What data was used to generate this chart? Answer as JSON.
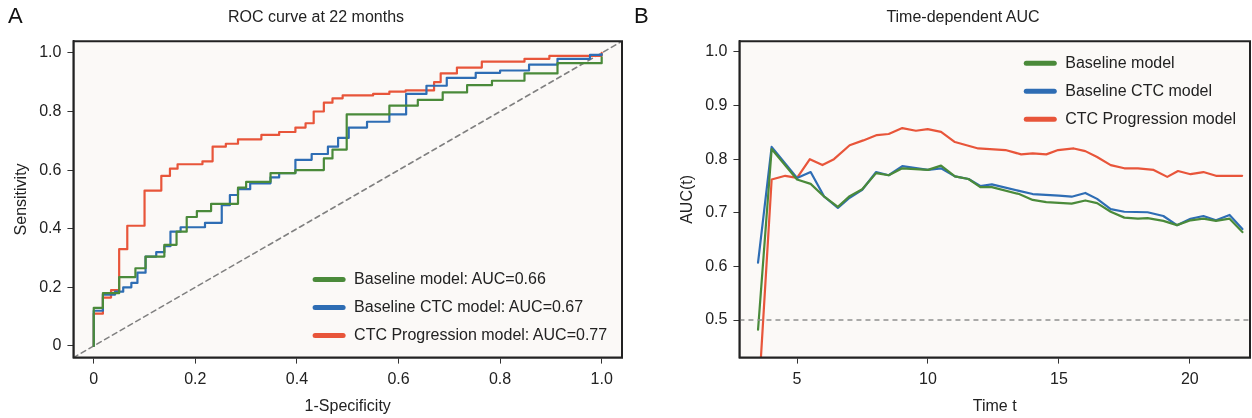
{
  "chart_data": [
    {
      "type": "step",
      "title": "ROC curve at 22 months",
      "xlabel": "1-Specificity",
      "ylabel": "Sensitivity",
      "annotations": [
        "A"
      ],
      "xlim": [
        -0.04,
        1.04
      ],
      "ylim": [
        -0.04,
        1.04
      ],
      "xticks": [
        0,
        0.2,
        0.4,
        0.6,
        0.8,
        {
          "value": 1,
          "label": "1.0"
        }
      ],
      "yticks": [
        0,
        0.2,
        0.4,
        0.6,
        0.8,
        {
          "value": 1,
          "label": "1.0"
        }
      ],
      "legend": "bottom right",
      "marker": "none",
      "series": [
        {
          "name": "Baseline model: AUC=0.66",
          "color": "#4a8a3a",
          "x": [
            0,
            0,
            0.018,
            0.05,
            0.082,
            0.102,
            0.139,
            0.163,
            0.183,
            0.203,
            0.231,
            0.284,
            0.3,
            0.348,
            0.397,
            0.453,
            0.47,
            0.498,
            0.582,
            0.638,
            0.687,
            0.735,
            0.784,
            0.848,
            0.913,
            1
          ],
          "values": [
            0,
            0.13,
            0.18,
            0.235,
            0.265,
            0.305,
            0.345,
            0.39,
            0.44,
            0.46,
            0.485,
            0.54,
            0.56,
            0.59,
            0.6,
            0.64,
            0.67,
            0.79,
            0.82,
            0.84,
            0.865,
            0.89,
            0.905,
            0.93,
            0.965,
            0.985
          ]
        },
        {
          "name": "Baseline CTC model: AUC=0.67",
          "color": "#2e6db4",
          "x": [
            0,
            0,
            0.018,
            0.042,
            0.058,
            0.074,
            0.086,
            0.102,
            0.123,
            0.139,
            0.151,
            0.171,
            0.219,
            0.252,
            0.268,
            0.284,
            0.308,
            0.348,
            0.365,
            0.397,
            0.429,
            0.461,
            0.481,
            0.502,
            0.538,
            0.582,
            0.615,
            0.655,
            0.695,
            0.752,
            0.8,
            0.857,
            0.913,
            0.977,
            1
          ],
          "values": [
            0,
            0.12,
            0.175,
            0.185,
            0.2,
            0.215,
            0.25,
            0.305,
            0.32,
            0.34,
            0.39,
            0.405,
            0.42,
            0.48,
            0.515,
            0.535,
            0.555,
            0.575,
            0.59,
            0.635,
            0.655,
            0.68,
            0.71,
            0.745,
            0.765,
            0.79,
            0.86,
            0.888,
            0.915,
            0.932,
            0.94,
            0.96,
            0.98,
            0.993,
            0.996
          ]
        },
        {
          "name": "CTC Progression model: AUC=0.77",
          "color": "#e8553a",
          "x": [
            0,
            0,
            0.018,
            0.034,
            0.05,
            0.066,
            0.1,
            0.133,
            0.15,
            0.165,
            0.214,
            0.234,
            0.26,
            0.284,
            0.33,
            0.365,
            0.397,
            0.417,
            0.433,
            0.453,
            0.47,
            0.49,
            0.55,
            0.582,
            0.614,
            0.67,
            0.683,
            0.715,
            0.764,
            0.848,
            0.897,
            1
          ],
          "values": [
            0,
            0.11,
            0.165,
            0.19,
            0.33,
            0.41,
            0.53,
            0.58,
            0.605,
            0.62,
            0.63,
            0.68,
            0.69,
            0.705,
            0.72,
            0.73,
            0.745,
            0.76,
            0.8,
            0.83,
            0.845,
            0.855,
            0.86,
            0.868,
            0.872,
            0.9,
            0.93,
            0.95,
            0.97,
            0.98,
            0.99,
            1
          ]
        },
        {
          "type": "line",
          "color": "#808080",
          "line_style": "dashed",
          "x": [
            -0.04,
            1.04
          ],
          "values": [
            -0.04,
            1.04
          ]
        }
      ]
    },
    {
      "type": "line",
      "title": "Time-dependent AUC",
      "xlabel": "Time t",
      "ylabel": "AUC(t)",
      "annotations": [
        "B"
      ],
      "xlim": [
        2.8,
        22.3
      ],
      "ylim": [
        0.43,
        1.02
      ],
      "xticks": [
        5,
        10,
        15,
        20
      ],
      "yticks": [
        0.5,
        0.6,
        0.7,
        0.8,
        0.9,
        {
          "value": 1,
          "label": "1.0"
        }
      ],
      "legend": "top right",
      "marker": "none",
      "ref_lines": [
        {
          "axis": "y",
          "value": 0.5,
          "color": "#909090",
          "line_style": "dashed"
        }
      ],
      "series": [
        {
          "name": "Baseline model",
          "color": "#4a8a3a",
          "x": [
            3.51,
            4.03,
            5,
            5.52,
            6.04,
            6.56,
            7.01,
            7.49,
            8.02,
            8.5,
            9.02,
            10,
            10.5,
            11.03,
            11.55,
            12,
            12.44,
            13.48,
            14,
            14.52,
            15.49,
            16.01,
            16.46,
            16.98,
            17.5,
            18.02,
            18.39,
            18.99,
            19.51,
            20.03,
            20.52,
            21,
            21.52,
            22.01
          ],
          "values": [
            0.482,
            0.819,
            0.762,
            0.754,
            0.73,
            0.711,
            0.731,
            0.744,
            0.774,
            0.77,
            0.783,
            0.78,
            0.788,
            0.768,
            0.763,
            0.748,
            0.748,
            0.735,
            0.724,
            0.72,
            0.717,
            0.723,
            0.718,
            0.702,
            0.691,
            0.689,
            0.69,
            0.685,
            0.677,
            0.686,
            0.689,
            0.685,
            0.689,
            0.664
          ]
        },
        {
          "name": "Baseline CTC model",
          "color": "#2e6db4",
          "x": [
            3.51,
            4.03,
            5,
            5.52,
            6.04,
            6.56,
            7.01,
            7.49,
            8.02,
            8.5,
            9.02,
            10,
            10.5,
            11.03,
            11.55,
            12,
            12.44,
            13.48,
            14,
            15,
            15.49,
            16.01,
            16.46,
            16.98,
            17.5,
            18.39,
            18.99,
            19.51,
            20.03,
            20.52,
            21,
            21.52,
            22.01
          ],
          "values": [
            0.607,
            0.823,
            0.765,
            0.776,
            0.73,
            0.709,
            0.728,
            0.743,
            0.776,
            0.77,
            0.787,
            0.78,
            0.783,
            0.768,
            0.763,
            0.75,
            0.753,
            0.741,
            0.735,
            0.732,
            0.73,
            0.737,
            0.726,
            0.707,
            0.702,
            0.701,
            0.694,
            0.677,
            0.689,
            0.694,
            0.686,
            0.696,
            0.67
          ]
        },
        {
          "name": "CTC Progression model",
          "color": "#e8553a",
          "x": [
            3.62,
            4.03,
            4.55,
            5,
            5.49,
            5.97,
            6.41,
            7.01,
            7.53,
            8.05,
            8.5,
            9.02,
            9.54,
            9.99,
            10.5,
            11.03,
            11.92,
            12.96,
            13.56,
            14,
            14.52,
            14.97,
            15.57,
            16.01,
            16.46,
            16.98,
            17.5,
            18.02,
            18.62,
            19.14,
            19.55,
            20.03,
            20.52,
            21,
            22
          ],
          "values": [
            0.43,
            0.762,
            0.769,
            0.765,
            0.8,
            0.789,
            0.8,
            0.826,
            0.835,
            0.845,
            0.847,
            0.858,
            0.853,
            0.856,
            0.851,
            0.832,
            0.82,
            0.817,
            0.809,
            0.811,
            0.809,
            0.817,
            0.82,
            0.815,
            0.804,
            0.789,
            0.783,
            0.783,
            0.78,
            0.767,
            0.778,
            0.772,
            0.776,
            0.769,
            0.769
          ]
        }
      ]
    }
  ]
}
